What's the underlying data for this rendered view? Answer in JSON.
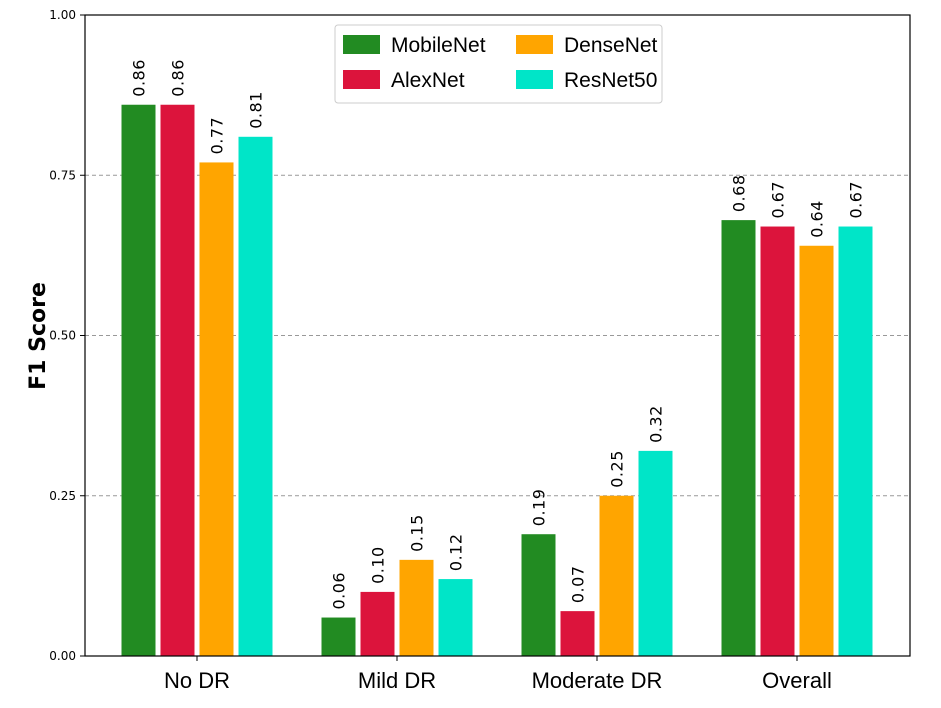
{
  "chart_data": {
    "type": "bar",
    "categories": [
      "No DR",
      "Mild DR",
      "Moderate DR",
      "Overall"
    ],
    "series": [
      {
        "name": "MobileNet",
        "color": "#228b22",
        "values": [
          0.86,
          0.06,
          0.19,
          0.68
        ],
        "labels": [
          "0.86",
          "0.06",
          "0.19",
          "0.68"
        ]
      },
      {
        "name": "AlexNet",
        "color": "#dc143c",
        "values": [
          0.86,
          0.1,
          0.07,
          0.67
        ],
        "labels": [
          "0.86",
          "0.10",
          "0.07",
          "0.67"
        ]
      },
      {
        "name": "DenseNet",
        "color": "#ffa500",
        "values": [
          0.77,
          0.15,
          0.25,
          0.64
        ],
        "labels": [
          "0.77",
          "0.15",
          "0.25",
          "0.64"
        ]
      },
      {
        "name": "ResNet50",
        "color": "#00e5c8",
        "values": [
          0.81,
          0.12,
          0.32,
          0.67
        ],
        "labels": [
          "0.81",
          "0.12",
          "0.32",
          "0.67"
        ]
      }
    ],
    "yticks": [
      "0.00",
      "0.25",
      "0.50",
      "0.75",
      "1.00"
    ],
    "ytick_values": [
      0,
      0.25,
      0.5,
      0.75,
      1.0
    ],
    "ylim": [
      0,
      1.0
    ],
    "xlabel": "",
    "ylabel": "F1 Score",
    "grid": "y-dashed",
    "legend_placement": "upper-center, 2 columns"
  }
}
